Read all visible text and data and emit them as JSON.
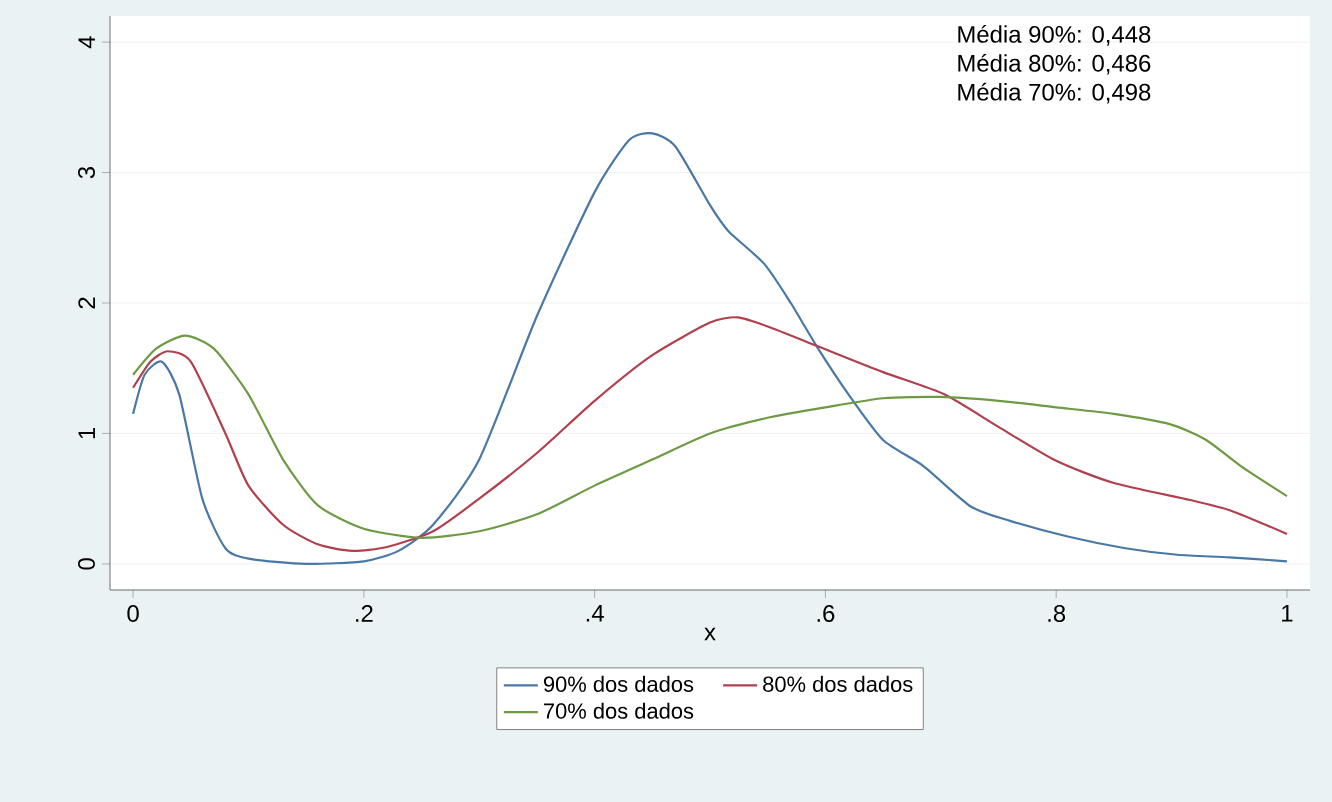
{
  "chart_data": {
    "type": "line",
    "xlabel": "x",
    "annotations": [
      "Média 90%: 0,448",
      "Média 80%: 0,486",
      "Média 70%: 0,498"
    ],
    "xlim": [
      -0.02,
      1.02
    ],
    "ylim": [
      -0.2,
      4.2
    ],
    "xticks": [
      {
        "value": 0,
        "label": "0"
      },
      {
        "value": 0.2,
        "label": ".2"
      },
      {
        "value": 0.4,
        "label": ".4"
      },
      {
        "value": 0.6,
        "label": ".6"
      },
      {
        "value": 0.8,
        "label": ".8"
      },
      {
        "value": 1,
        "label": "1"
      }
    ],
    "yticks": [
      0,
      1,
      2,
      3,
      4
    ],
    "grid": "y",
    "legend": "bottom",
    "marker": "none",
    "line_style": "solid",
    "series": [
      {
        "name": "90% dos dados",
        "color": "#4a78a6",
        "x": [
          0,
          0.01,
          0.025,
          0.04,
          0.06,
          0.08,
          0.1,
          0.15,
          0.2,
          0.23,
          0.26,
          0.3,
          0.35,
          0.4,
          0.43,
          0.45,
          0.47,
          0.5,
          0.516,
          0.547,
          0.57,
          0.593,
          0.62,
          0.65,
          0.685,
          0.726,
          0.76,
          0.81,
          0.86,
          0.905,
          0.95,
          1.0
        ],
        "values": [
          1.15,
          1.45,
          1.55,
          1.3,
          0.5,
          0.12,
          0.04,
          0.0,
          0.02,
          0.1,
          0.3,
          0.8,
          1.9,
          2.85,
          3.25,
          3.3,
          3.2,
          2.75,
          2.55,
          2.3,
          2.0,
          1.66,
          1.3,
          0.95,
          0.75,
          0.44,
          0.33,
          0.21,
          0.12,
          0.07,
          0.05,
          0.02
        ]
      },
      {
        "name": "80% dos dados",
        "color": "#b0404e",
        "x": [
          0,
          0.015,
          0.03,
          0.05,
          0.08,
          0.1,
          0.13,
          0.16,
          0.19,
          0.22,
          0.26,
          0.3,
          0.35,
          0.4,
          0.45,
          0.5,
          0.524,
          0.55,
          0.593,
          0.65,
          0.703,
          0.75,
          0.8,
          0.85,
          0.916,
          0.951,
          1.0
        ],
        "values": [
          1.35,
          1.55,
          1.63,
          1.55,
          1.0,
          0.6,
          0.3,
          0.15,
          0.1,
          0.13,
          0.25,
          0.5,
          0.85,
          1.25,
          1.6,
          1.85,
          1.89,
          1.82,
          1.67,
          1.47,
          1.3,
          1.05,
          0.79,
          0.62,
          0.49,
          0.41,
          0.23
        ]
      },
      {
        "name": "70% dos dados",
        "color": "#6e9a44",
        "x": [
          0,
          0.02,
          0.045,
          0.07,
          0.1,
          0.13,
          0.16,
          0.2,
          0.25,
          0.3,
          0.35,
          0.4,
          0.45,
          0.5,
          0.55,
          0.6,
          0.65,
          0.7,
          0.75,
          0.8,
          0.85,
          0.899,
          0.93,
          0.96,
          1.0
        ],
        "values": [
          1.45,
          1.65,
          1.75,
          1.65,
          1.3,
          0.8,
          0.45,
          0.27,
          0.2,
          0.25,
          0.38,
          0.6,
          0.8,
          1.0,
          1.12,
          1.2,
          1.27,
          1.28,
          1.25,
          1.2,
          1.15,
          1.07,
          0.95,
          0.75,
          0.52
        ]
      }
    ]
  }
}
